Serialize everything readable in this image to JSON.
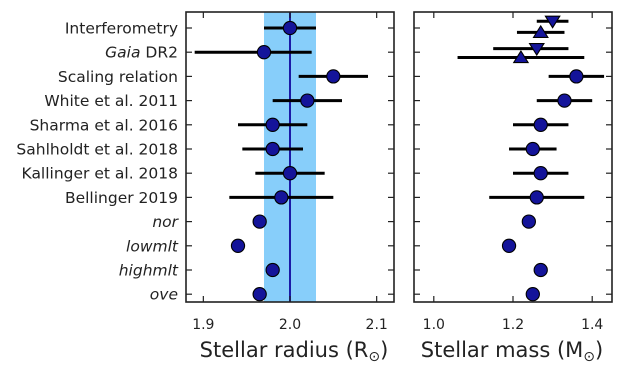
{
  "chart_data": [
    {
      "type": "scatter",
      "panel": "left",
      "xlabel_main": "Stellar radius (R",
      "xlabel_sub": "⊙",
      "xlabel_close": ")",
      "xlim": [
        1.88,
        2.12
      ],
      "xticks": [
        1.9,
        2.0,
        2.1
      ],
      "xtick_labels": [
        "1.9",
        "2.0",
        "2.1"
      ],
      "reference_line": 2.0,
      "band": [
        1.97,
        2.03
      ],
      "band_color": "#87cefa",
      "line_color": "#1a1aa6",
      "marker_color": "#14149a",
      "rows": [
        {
          "label": "Interferometry",
          "label_parts": [
            {
              "t": "Interferometry",
              "i": false
            }
          ],
          "x": 2.0,
          "xerr_low": 0.03,
          "xerr_high": 0.03,
          "marker": "circle"
        },
        {
          "label": "Gaia DR2",
          "label_parts": [
            {
              "t": "Gaia",
              "i": true
            },
            {
              "t": " DR2",
              "i": false
            }
          ],
          "x": 1.97,
          "xerr_low": 0.08,
          "xerr_high": 0.055,
          "marker": "circle"
        },
        {
          "label": "Scaling relation",
          "label_parts": [
            {
              "t": "Scaling relation",
              "i": false
            }
          ],
          "x": 2.05,
          "xerr_low": 0.04,
          "xerr_high": 0.04,
          "marker": "circle"
        },
        {
          "label": "White et al. 2011",
          "label_parts": [
            {
              "t": "White et al. 2011",
              "i": false
            }
          ],
          "x": 2.02,
          "xerr_low": 0.04,
          "xerr_high": 0.04,
          "marker": "circle"
        },
        {
          "label": "Sharma et al. 2016",
          "label_parts": [
            {
              "t": "Sharma et al. 2016",
              "i": false
            }
          ],
          "x": 1.98,
          "xerr_low": 0.04,
          "xerr_high": 0.04,
          "marker": "circle"
        },
        {
          "label": "Sahlholdt et al. 2018",
          "label_parts": [
            {
              "t": "Sahlholdt et al. 2018",
              "i": false
            }
          ],
          "x": 1.98,
          "xerr_low": 0.035,
          "xerr_high": 0.035,
          "marker": "circle"
        },
        {
          "label": "Kallinger et al. 2018",
          "label_parts": [
            {
              "t": "Kallinger et al. 2018",
              "i": false
            }
          ],
          "x": 2.0,
          "xerr_low": 0.04,
          "xerr_high": 0.04,
          "marker": "circle"
        },
        {
          "label": "Bellinger 2019",
          "label_parts": [
            {
              "t": "Bellinger 2019",
              "i": false
            }
          ],
          "x": 1.99,
          "xerr_low": 0.06,
          "xerr_high": 0.06,
          "marker": "circle"
        },
        {
          "label": "nor",
          "label_parts": [
            {
              "t": "nor",
              "i": true
            }
          ],
          "x": 1.965,
          "xerr_low": 0,
          "xerr_high": 0,
          "marker": "circle"
        },
        {
          "label": "lowmlt",
          "label_parts": [
            {
              "t": "lowmlt",
              "i": true
            }
          ],
          "x": 1.94,
          "xerr_low": 0,
          "xerr_high": 0,
          "marker": "circle"
        },
        {
          "label": "highmlt",
          "label_parts": [
            {
              "t": "highmlt",
              "i": true
            }
          ],
          "x": 1.98,
          "xerr_low": 0,
          "xerr_high": 0,
          "marker": "circle"
        },
        {
          "label": "ove",
          "label_parts": [
            {
              "t": "ove",
              "i": true
            }
          ],
          "x": 1.965,
          "xerr_low": 0,
          "xerr_high": 0,
          "marker": "circle"
        }
      ]
    },
    {
      "type": "scatter",
      "panel": "right",
      "xlabel_main": "Stellar mass (M",
      "xlabel_sub": "⊙",
      "xlabel_close": ")",
      "xlim": [
        0.95,
        1.45
      ],
      "xticks": [
        1.0,
        1.2,
        1.4
      ],
      "xtick_labels": [
        "1.0",
        "1.2",
        "1.4"
      ],
      "marker_color": "#14149a",
      "rows": [
        {
          "points": [
            {
              "x": 1.3,
              "xerr_low": 0.04,
              "xerr_high": 0.04,
              "marker": "triangle-down",
              "dy": -0.28
            },
            {
              "x": 1.27,
              "xerr_low": 0.06,
              "xerr_high": 0.06,
              "marker": "triangle-up",
              "dy": 0.18
            }
          ]
        },
        {
          "points": [
            {
              "x": 1.26,
              "xerr_low": 0.11,
              "xerr_high": 0.08,
              "marker": "triangle-down",
              "dy": -0.15
            },
            {
              "x": 1.22,
              "xerr_low": 0.16,
              "xerr_high": 0.16,
              "marker": "triangle-up",
              "dy": 0.22
            }
          ]
        },
        {
          "points": [
            {
              "x": 1.36,
              "xerr_low": 0.07,
              "xerr_high": 0.07,
              "marker": "circle",
              "dy": 0
            }
          ]
        },
        {
          "points": [
            {
              "x": 1.33,
              "xerr_low": 0.07,
              "xerr_high": 0.07,
              "marker": "circle",
              "dy": 0
            }
          ]
        },
        {
          "points": [
            {
              "x": 1.27,
              "xerr_low": 0.07,
              "xerr_high": 0.07,
              "marker": "circle",
              "dy": 0
            }
          ]
        },
        {
          "points": [
            {
              "x": 1.25,
              "xerr_low": 0.06,
              "xerr_high": 0.06,
              "marker": "circle",
              "dy": 0
            }
          ]
        },
        {
          "points": [
            {
              "x": 1.27,
              "xerr_low": 0.07,
              "xerr_high": 0.07,
              "marker": "circle",
              "dy": 0
            }
          ]
        },
        {
          "points": [
            {
              "x": 1.26,
              "xerr_low": 0.12,
              "xerr_high": 0.12,
              "marker": "circle",
              "dy": 0
            }
          ]
        },
        {
          "points": [
            {
              "x": 1.24,
              "xerr_low": 0,
              "xerr_high": 0,
              "marker": "circle",
              "dy": 0
            }
          ]
        },
        {
          "points": [
            {
              "x": 1.19,
              "xerr_low": 0,
              "xerr_high": 0,
              "marker": "circle",
              "dy": 0
            }
          ]
        },
        {
          "points": [
            {
              "x": 1.27,
              "xerr_low": 0,
              "xerr_high": 0,
              "marker": "circle",
              "dy": 0
            }
          ]
        },
        {
          "points": [
            {
              "x": 1.25,
              "xerr_low": 0,
              "xerr_high": 0,
              "marker": "circle",
              "dy": 0
            }
          ]
        }
      ]
    }
  ]
}
